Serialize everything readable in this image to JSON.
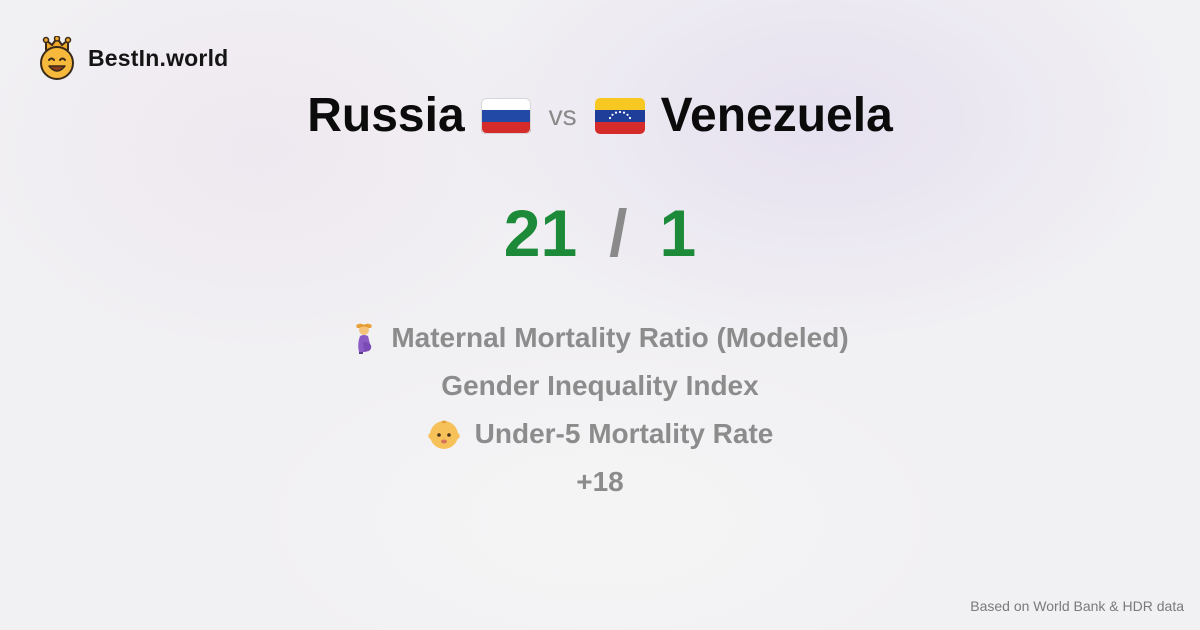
{
  "brand": {
    "name": "BestIn.world",
    "logo_icon": "crowned-smiley-icon"
  },
  "comparison": {
    "left_country": "Russia",
    "left_flag_icon": "russia-flag-icon",
    "vs_label": "vs",
    "right_country": "Venezuela",
    "right_flag_icon": "venezuela-flag-icon"
  },
  "score": {
    "left": "21",
    "separator": "/",
    "right": "1"
  },
  "metrics": [
    {
      "label": "Maternal Mortality Ratio (Modeled)",
      "icon": "pregnant-woman-icon"
    },
    {
      "label": "Gender Inequality Index",
      "icon": ""
    },
    {
      "label": "Under-5 Mortality Rate",
      "icon": "baby-icon"
    },
    {
      "label": "+18",
      "icon": ""
    }
  ],
  "footer": {
    "source": "Based on World Bank & HDR data"
  },
  "colors": {
    "score_green": "#1c8a38",
    "muted_gray": "#8c8c8c",
    "background": "#f1f0f3"
  }
}
